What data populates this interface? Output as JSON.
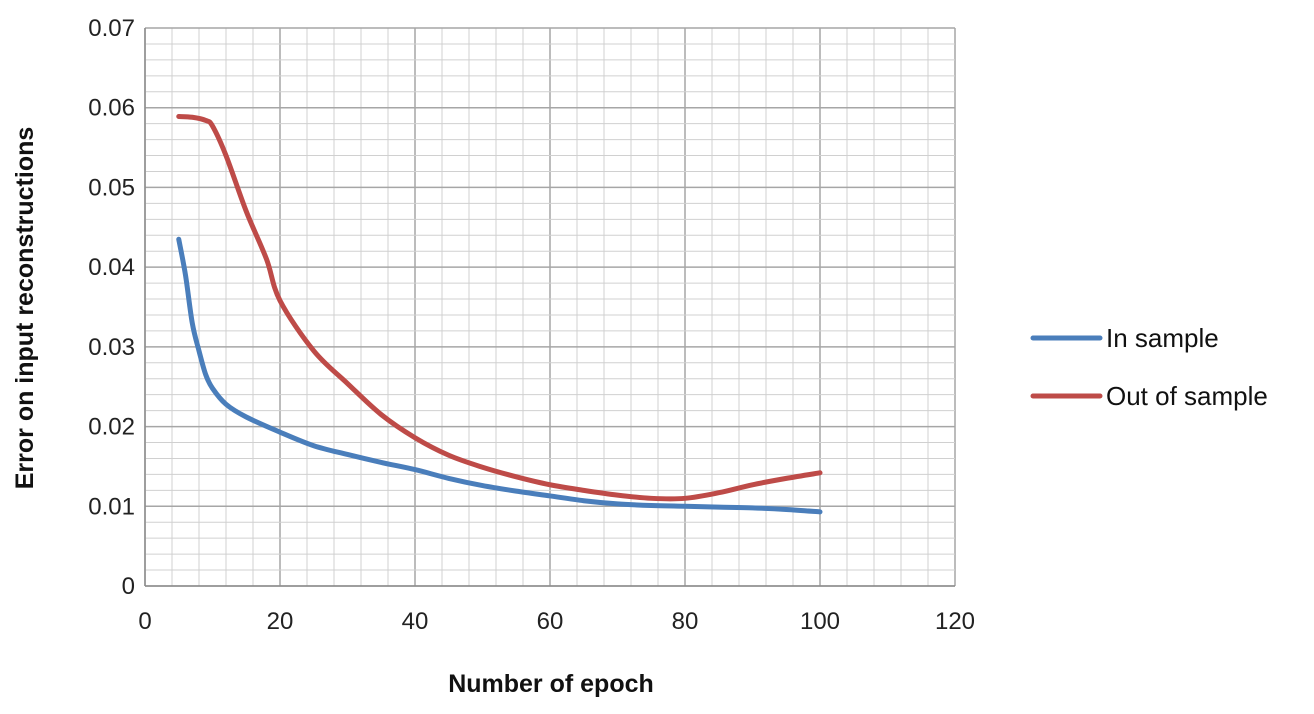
{
  "chart_data": {
    "type": "line",
    "title": "",
    "xlabel": "Number of epoch",
    "ylabel": "Error on input reconstructions",
    "xlim": [
      0,
      120
    ],
    "ylim": [
      0,
      0.07
    ],
    "x_ticks": [
      "0",
      "20",
      "40",
      "60",
      "80",
      "100",
      "120"
    ],
    "y_ticks": [
      "0",
      "0.01",
      "0.02",
      "0.03",
      "0.04",
      "0.05",
      "0.06",
      "0.07"
    ],
    "grid": true,
    "legend_position": "right",
    "series": [
      {
        "name": "In sample",
        "color": "#4a7ebb",
        "points": [
          [
            5,
            0.0435
          ],
          [
            6,
            0.039
          ],
          [
            7,
            0.033
          ],
          [
            8,
            0.0295
          ],
          [
            9,
            0.0265
          ],
          [
            10,
            0.0248
          ],
          [
            12,
            0.0228
          ],
          [
            15,
            0.0212
          ],
          [
            20,
            0.0193
          ],
          [
            25,
            0.0176
          ],
          [
            30,
            0.0165
          ],
          [
            35,
            0.0155
          ],
          [
            40,
            0.0146
          ],
          [
            45,
            0.0135
          ],
          [
            50,
            0.0126
          ],
          [
            55,
            0.0119
          ],
          [
            60,
            0.0113
          ],
          [
            65,
            0.0107
          ],
          [
            70,
            0.0103
          ],
          [
            75,
            0.0101
          ],
          [
            80,
            0.01
          ],
          [
            85,
            0.0099
          ],
          [
            90,
            0.0098
          ],
          [
            95,
            0.0096
          ],
          [
            100,
            0.0093
          ]
        ]
      },
      {
        "name": "Out of sample",
        "color": "#be4b48",
        "points": [
          [
            5,
            0.0589
          ],
          [
            7,
            0.0588
          ],
          [
            9,
            0.0584
          ],
          [
            10,
            0.0577
          ],
          [
            12,
            0.054
          ],
          [
            15,
            0.047
          ],
          [
            18,
            0.041
          ],
          [
            20,
            0.0358
          ],
          [
            25,
            0.0295
          ],
          [
            30,
            0.0254
          ],
          [
            35,
            0.0215
          ],
          [
            40,
            0.0186
          ],
          [
            45,
            0.0164
          ],
          [
            50,
            0.0149
          ],
          [
            55,
            0.0137
          ],
          [
            60,
            0.0127
          ],
          [
            65,
            0.012
          ],
          [
            70,
            0.0114
          ],
          [
            75,
            0.011
          ],
          [
            80,
            0.011
          ],
          [
            85,
            0.0117
          ],
          [
            90,
            0.0127
          ],
          [
            95,
            0.0135
          ],
          [
            100,
            0.0142
          ]
        ]
      }
    ]
  }
}
